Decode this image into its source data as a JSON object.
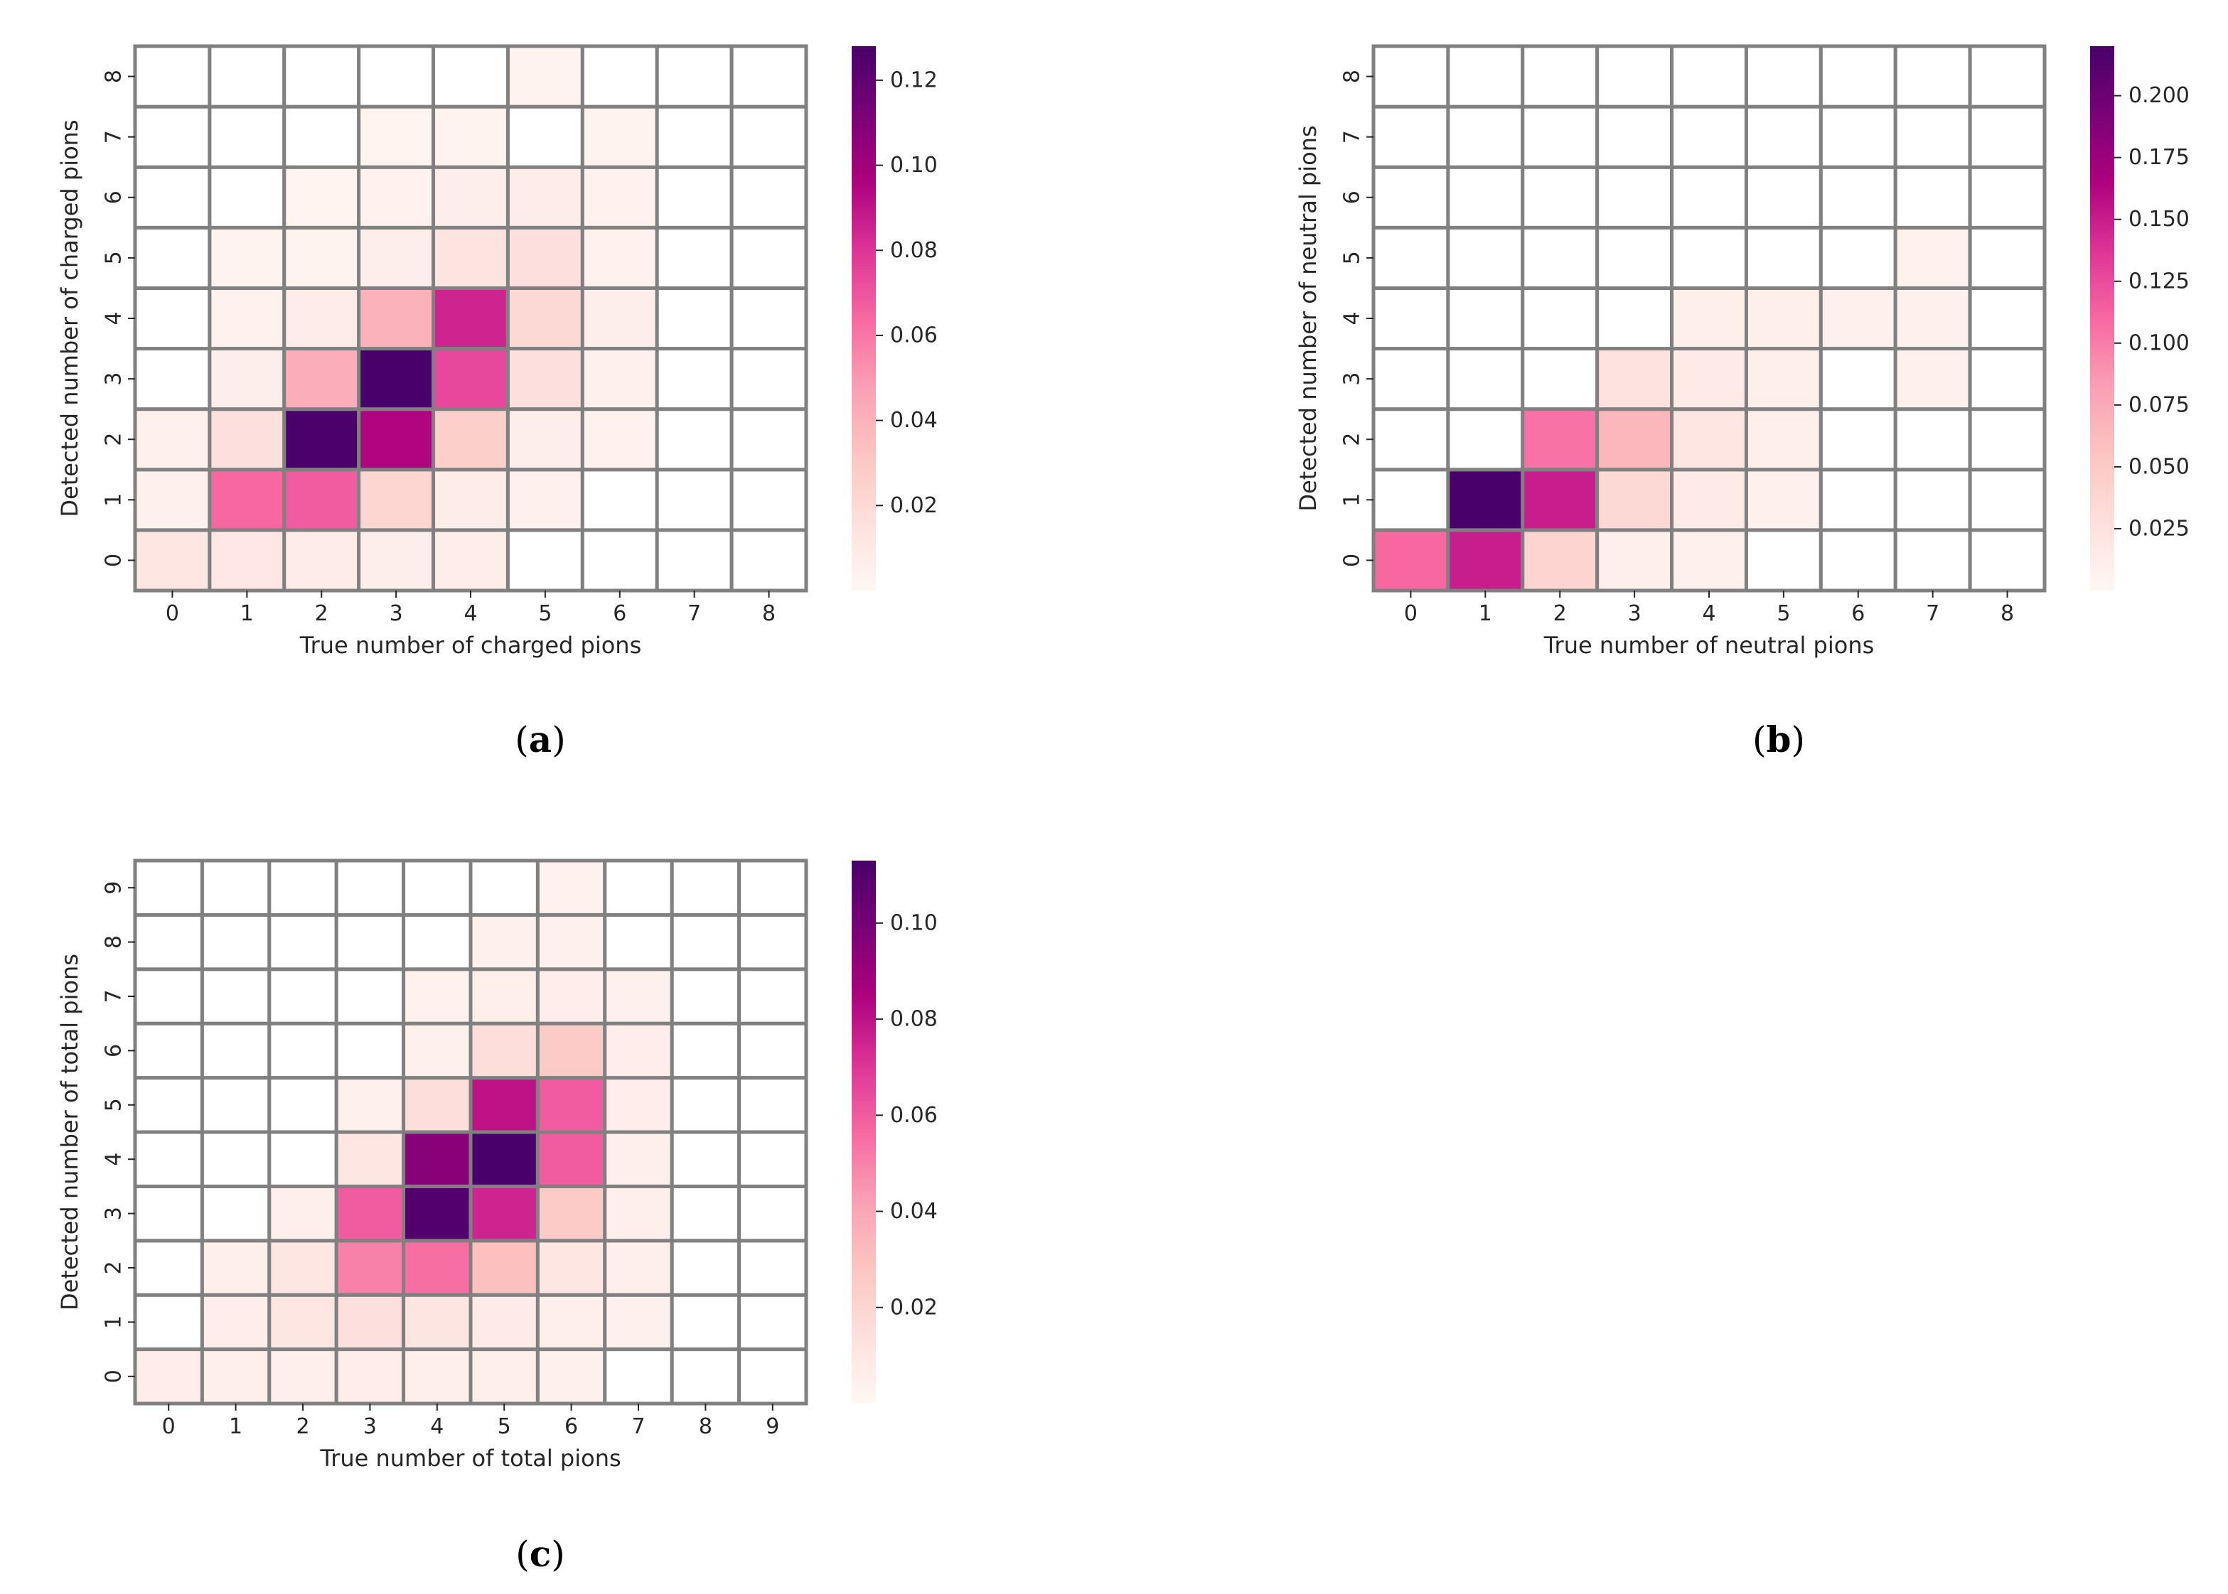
{
  "chart_data": [
    {
      "type": "heatmap",
      "panel": "(a)",
      "panel_letter": "a",
      "xlabel": "True number of charged pions",
      "ylabel": "Detected number of charged pions",
      "x_categories": [
        "0",
        "1",
        "2",
        "3",
        "4",
        "5",
        "6",
        "7",
        "8"
      ],
      "y_categories": [
        "0",
        "1",
        "2",
        "3",
        "4",
        "5",
        "6",
        "7",
        "8"
      ],
      "colorbar": {
        "vmin": 0.0,
        "vmax": 0.128,
        "ticks": [
          0.02,
          0.04,
          0.06,
          0.08,
          0.1,
          0.12
        ],
        "tick_labels": [
          "0.02",
          "0.04",
          "0.06",
          "0.08",
          "0.10",
          "0.12"
        ],
        "colormap": "RdPu"
      },
      "values": [
        [
          0.012,
          0.011,
          0.008,
          0.006,
          0.007,
          0.0,
          0.0,
          0.0,
          0.0
        ],
        [
          0.005,
          0.064,
          0.068,
          0.022,
          0.008,
          0.005,
          0.0,
          0.0,
          0.0
        ],
        [
          0.005,
          0.016,
          0.127,
          0.095,
          0.026,
          0.006,
          0.004,
          0.0,
          0.0
        ],
        [
          0.0,
          0.006,
          0.042,
          0.128,
          0.074,
          0.016,
          0.005,
          0.0,
          0.0
        ],
        [
          0.0,
          0.004,
          0.008,
          0.04,
          0.085,
          0.02,
          0.006,
          0.0,
          0.0
        ],
        [
          0.0,
          0.003,
          0.003,
          0.006,
          0.013,
          0.016,
          0.004,
          0.0,
          0.0
        ],
        [
          0.0,
          0.0,
          0.002,
          0.004,
          0.006,
          0.008,
          0.004,
          0.0,
          0.0
        ],
        [
          0.0,
          0.0,
          0.0,
          0.002,
          0.003,
          0.0,
          0.003,
          0.0,
          0.0
        ],
        [
          0.0,
          0.0,
          0.0,
          0.0,
          0.0,
          0.003,
          0.0,
          0.0,
          0.0
        ]
      ]
    },
    {
      "type": "heatmap",
      "panel": "(b)",
      "panel_letter": "b",
      "xlabel": "True number of neutral pions",
      "ylabel": "Detected number of neutral pions",
      "x_categories": [
        "0",
        "1",
        "2",
        "3",
        "4",
        "5",
        "6",
        "7",
        "8"
      ],
      "y_categories": [
        "0",
        "1",
        "2",
        "3",
        "4",
        "5",
        "6",
        "7",
        "8"
      ],
      "colorbar": {
        "vmin": 0.0,
        "vmax": 0.22,
        "ticks": [
          0.025,
          0.05,
          0.075,
          0.1,
          0.125,
          0.15,
          0.175,
          0.2
        ],
        "tick_labels": [
          "0.025",
          "0.050",
          "0.075",
          "0.100",
          "0.125",
          "0.150",
          "0.175",
          "0.200"
        ],
        "colormap": "RdPu"
      },
      "values": [
        [
          0.11,
          0.15,
          0.04,
          0.01,
          0.008,
          0.0,
          0.0,
          0.0,
          0.0
        ],
        [
          0.0,
          0.22,
          0.15,
          0.035,
          0.015,
          0.008,
          0.0,
          0.0,
          0.0
        ],
        [
          0.0,
          0.0,
          0.105,
          0.065,
          0.02,
          0.01,
          0.0,
          0.0,
          0.0
        ],
        [
          0.0,
          0.0,
          0.0,
          0.025,
          0.015,
          0.01,
          0.0,
          0.008,
          0.0
        ],
        [
          0.0,
          0.0,
          0.0,
          0.0,
          0.01,
          0.01,
          0.008,
          0.008,
          0.0
        ],
        [
          0.0,
          0.0,
          0.0,
          0.0,
          0.0,
          0.0,
          0.0,
          0.006,
          0.0
        ],
        [
          0.0,
          0.0,
          0.0,
          0.0,
          0.0,
          0.0,
          0.0,
          0.0,
          0.0
        ],
        [
          0.0,
          0.0,
          0.0,
          0.0,
          0.0,
          0.0,
          0.0,
          0.0,
          0.0
        ],
        [
          0.0,
          0.0,
          0.0,
          0.0,
          0.0,
          0.0,
          0.0,
          0.0,
          0.0
        ]
      ]
    },
    {
      "type": "heatmap",
      "panel": "(c)",
      "panel_letter": "c",
      "xlabel": "True number of total pions",
      "ylabel": "Detected number of total pions",
      "x_categories": [
        "0",
        "1",
        "2",
        "3",
        "4",
        "5",
        "6",
        "7",
        "8",
        "9"
      ],
      "y_categories": [
        "0",
        "1",
        "2",
        "3",
        "4",
        "5",
        "6",
        "7",
        "8",
        "9"
      ],
      "colorbar": {
        "vmin": 0.0,
        "vmax": 0.113,
        "ticks": [
          0.02,
          0.04,
          0.06,
          0.08,
          0.1
        ],
        "tick_labels": [
          "0.02",
          "0.04",
          "0.06",
          "0.08",
          "0.10"
        ],
        "colormap": "RdPu"
      },
      "values": [
        [
          0.006,
          0.005,
          0.005,
          0.006,
          0.005,
          0.005,
          0.004,
          0.0,
          0.0,
          0.0
        ],
        [
          0.0,
          0.006,
          0.01,
          0.014,
          0.011,
          0.008,
          0.005,
          0.004,
          0.0,
          0.0
        ],
        [
          0.0,
          0.005,
          0.01,
          0.05,
          0.055,
          0.03,
          0.01,
          0.005,
          0.0,
          0.0
        ],
        [
          0.0,
          0.0,
          0.005,
          0.06,
          0.11,
          0.075,
          0.025,
          0.005,
          0.0,
          0.0
        ],
        [
          0.0,
          0.0,
          0.0,
          0.01,
          0.095,
          0.113,
          0.06,
          0.005,
          0.0,
          0.0
        ],
        [
          0.0,
          0.0,
          0.0,
          0.004,
          0.015,
          0.08,
          0.06,
          0.006,
          0.0,
          0.0
        ],
        [
          0.0,
          0.0,
          0.0,
          0.0,
          0.004,
          0.015,
          0.025,
          0.006,
          0.0,
          0.0
        ],
        [
          0.0,
          0.0,
          0.0,
          0.0,
          0.003,
          0.005,
          0.006,
          0.004,
          0.0,
          0.0
        ],
        [
          0.0,
          0.0,
          0.0,
          0.0,
          0.0,
          0.004,
          0.004,
          0.0,
          0.0,
          0.0
        ],
        [
          0.0,
          0.0,
          0.0,
          0.0,
          0.0,
          0.0,
          0.003,
          0.0,
          0.0,
          0.0
        ]
      ]
    }
  ]
}
